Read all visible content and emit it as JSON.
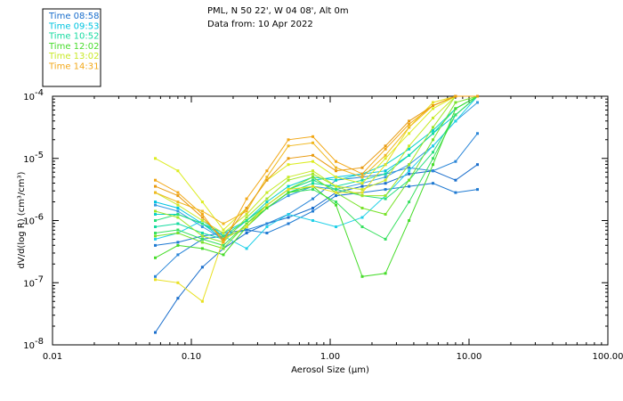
{
  "chart_data": {
    "type": "line",
    "header": {
      "line1": "PML, N 50 22', W 04 08', Alt 0m",
      "line2": "Data from: 10 Apr 2022"
    },
    "xlabel": "Aerosol Size (μm)",
    "ylabel": "dV/d(log R) (cm³/cm³)",
    "x_scale": "log",
    "y_scale": "log",
    "xlim": [
      0.01,
      100
    ],
    "ylim_exp": [
      -8,
      -4
    ],
    "x_ticks": [
      {
        "value": 0.01,
        "label": "0.01"
      },
      {
        "value": 0.1,
        "label": "0.10"
      },
      {
        "value": 1,
        "label": "1.00"
      },
      {
        "value": 10,
        "label": "10.00"
      },
      {
        "value": 100,
        "label": "100.00"
      }
    ],
    "y_ticks": [
      {
        "exp": -4,
        "label": "10",
        "sup": "-4"
      },
      {
        "exp": -5,
        "label": "10",
        "sup": "-5"
      },
      {
        "exp": -6,
        "label": "10",
        "sup": "-6"
      },
      {
        "exp": -7,
        "label": "10",
        "sup": "-7"
      },
      {
        "exp": -8,
        "label": "10",
        "sup": "-8"
      }
    ],
    "x": [
      0.055,
      0.08,
      0.12,
      0.17,
      0.25,
      0.35,
      0.5,
      0.75,
      1.1,
      1.7,
      2.5,
      3.7,
      5.5,
      8,
      11.5
    ],
    "series": [
      {
        "name": "Time 08:58",
        "color": "#1a6ecc",
        "y": [
          -7.8,
          -7.25,
          -6.75,
          -6.45,
          -6.2,
          -6.05,
          -5.95,
          -5.8,
          -5.55,
          -5.45,
          -5.4,
          -5.25,
          -5.2,
          -5.35,
          -5.1
        ]
      },
      {
        "name": "",
        "color": "#2a86d8",
        "y": [
          -6.9,
          -6.55,
          -6.3,
          -6.25,
          -6.15,
          -6.05,
          -5.9,
          -5.65,
          -5.35,
          -5.3,
          -5.25,
          -5.15,
          -5.2,
          -5.05,
          -4.6
        ]
      },
      {
        "name": "",
        "color": "#1f7ad2",
        "y": [
          -6.4,
          -6.35,
          -6.25,
          -6.2,
          -6.15,
          -6.2,
          -6.05,
          -5.85,
          -5.6,
          -5.55,
          -5.5,
          -5.45,
          -5.4,
          -5.55,
          -5.5
        ]
      },
      {
        "name": "",
        "color": "#3399e0",
        "y": [
          -5.75,
          -5.85,
          -6.1,
          -6.3,
          -6.1,
          -5.8,
          -5.6,
          -5.45,
          -5.5,
          -5.4,
          -5.3,
          -5.1,
          -4.8,
          -4.4,
          -4.1
        ]
      },
      {
        "name": "Time 09:53",
        "color": "#00c4e0",
        "y": [
          -5.7,
          -5.8,
          -6.05,
          -6.3,
          -6.0,
          -5.75,
          -5.5,
          -5.35,
          -5.3,
          -5.25,
          -5.2,
          -4.95,
          -4.6,
          -4.3,
          -4.0
        ]
      },
      {
        "name": "",
        "color": "#22d0e8",
        "y": [
          -6.3,
          -6.2,
          -6.0,
          -6.25,
          -6.45,
          -6.1,
          -5.9,
          -6.0,
          -6.1,
          -5.95,
          -5.6,
          -5.2,
          -4.8,
          -4.4,
          -4.0
        ]
      },
      {
        "name": "",
        "color": "#0ad2c8",
        "y": [
          -5.9,
          -5.9,
          -6.05,
          -6.2,
          -6.0,
          -5.7,
          -5.45,
          -5.3,
          -5.35,
          -5.25,
          -5.1,
          -4.85,
          -4.55,
          -4.2,
          -4.0
        ]
      },
      {
        "name": "Time 10:52",
        "color": "#14dba0",
        "y": [
          -6.1,
          -6.05,
          -6.2,
          -6.3,
          -6.1,
          -5.8,
          -5.55,
          -5.4,
          -5.45,
          -5.35,
          -5.25,
          -4.95,
          -4.6,
          -4.2,
          -4.0
        ]
      },
      {
        "name": "",
        "color": "#2adf7c",
        "y": [
          -6.0,
          -5.9,
          -6.05,
          -6.25,
          -6.0,
          -5.75,
          -5.5,
          -5.35,
          -5.5,
          -5.6,
          -5.65,
          -5.35,
          -4.9,
          -4.3,
          -4.0
        ]
      },
      {
        "name": "",
        "color": "#38e060",
        "y": [
          -6.2,
          -6.15,
          -6.3,
          -6.4,
          -6.05,
          -5.8,
          -5.55,
          -5.5,
          -5.7,
          -6.1,
          -6.3,
          -5.7,
          -5.0,
          -4.3,
          -4.0
        ]
      },
      {
        "name": "Time 12:02",
        "color": "#46dc2a",
        "y": [
          -6.6,
          -6.4,
          -6.45,
          -6.55,
          -6.1,
          -5.8,
          -5.55,
          -5.45,
          -5.75,
          -6.9,
          -6.85,
          -6.0,
          -5.1,
          -4.2,
          -4.0
        ]
      },
      {
        "name": "",
        "color": "#78e22a",
        "y": [
          -6.25,
          -6.2,
          -6.35,
          -6.45,
          -6.05,
          -5.75,
          -5.5,
          -5.3,
          -5.55,
          -5.8,
          -5.9,
          -5.35,
          -4.7,
          -4.1,
          -4.0
        ]
      },
      {
        "name": "",
        "color": "#a0e62a",
        "y": [
          -5.85,
          -5.95,
          -6.25,
          -6.35,
          -5.95,
          -5.65,
          -5.35,
          -5.25,
          -5.45,
          -5.6,
          -5.6,
          -5.1,
          -4.5,
          -4.0,
          -4.0
        ]
      },
      {
        "name": "Time 13:02",
        "color": "#c8ea28",
        "y": [
          -5.55,
          -5.75,
          -6.0,
          -6.2,
          -5.9,
          -5.55,
          -5.3,
          -5.2,
          -5.45,
          -5.5,
          -5.35,
          -4.8,
          -4.35,
          -4.0,
          -4.0
        ]
      },
      {
        "name": "",
        "color": "#dcec22",
        "y": [
          -5.0,
          -5.2,
          -5.7,
          -6.15,
          -5.8,
          -5.35,
          -5.1,
          -5.05,
          -5.3,
          -5.4,
          -5.0,
          -4.6,
          -4.2,
          -4.0,
          -4.0
        ]
      },
      {
        "name": "",
        "color": "#e8e020",
        "y": [
          -6.95,
          -7.0,
          -7.3,
          -6.3,
          -6.1,
          -5.75,
          -5.5,
          -5.45,
          -5.55,
          -5.55,
          -5.1,
          -4.5,
          -4.1,
          -4.0,
          -4.0
        ]
      },
      {
        "name": "Time 14:31",
        "color": "#f2a818",
        "y": [
          -5.35,
          -5.55,
          -5.9,
          -6.35,
          -5.65,
          -5.2,
          -4.7,
          -4.65,
          -5.05,
          -5.25,
          -4.85,
          -4.45,
          -4.15,
          -4.0,
          -4.0
        ]
      },
      {
        "name": "",
        "color": "#f0b820",
        "y": [
          -5.55,
          -5.7,
          -5.85,
          -6.05,
          -5.85,
          -5.3,
          -4.8,
          -4.75,
          -5.15,
          -5.3,
          -4.95,
          -4.5,
          -4.15,
          -4.0,
          -4.0
        ]
      },
      {
        "name": "",
        "color": "#e89a10",
        "y": [
          -5.45,
          -5.6,
          -5.95,
          -6.3,
          -5.8,
          -5.35,
          -5.0,
          -4.95,
          -5.2,
          -5.15,
          -4.8,
          -4.4,
          -4.15,
          -4.0,
          -4.0
        ]
      }
    ],
    "legend": [
      {
        "label": "Time 08:58",
        "color": "#1a6ecc"
      },
      {
        "label": "Time 09:53",
        "color": "#00c4e0"
      },
      {
        "label": "Time 10:52",
        "color": "#14dba0"
      },
      {
        "label": "Time 12:02",
        "color": "#46dc2a"
      },
      {
        "label": "Time 13:02",
        "color": "#c8ea28"
      },
      {
        "label": "Time 14:31",
        "color": "#f2a818"
      }
    ]
  }
}
